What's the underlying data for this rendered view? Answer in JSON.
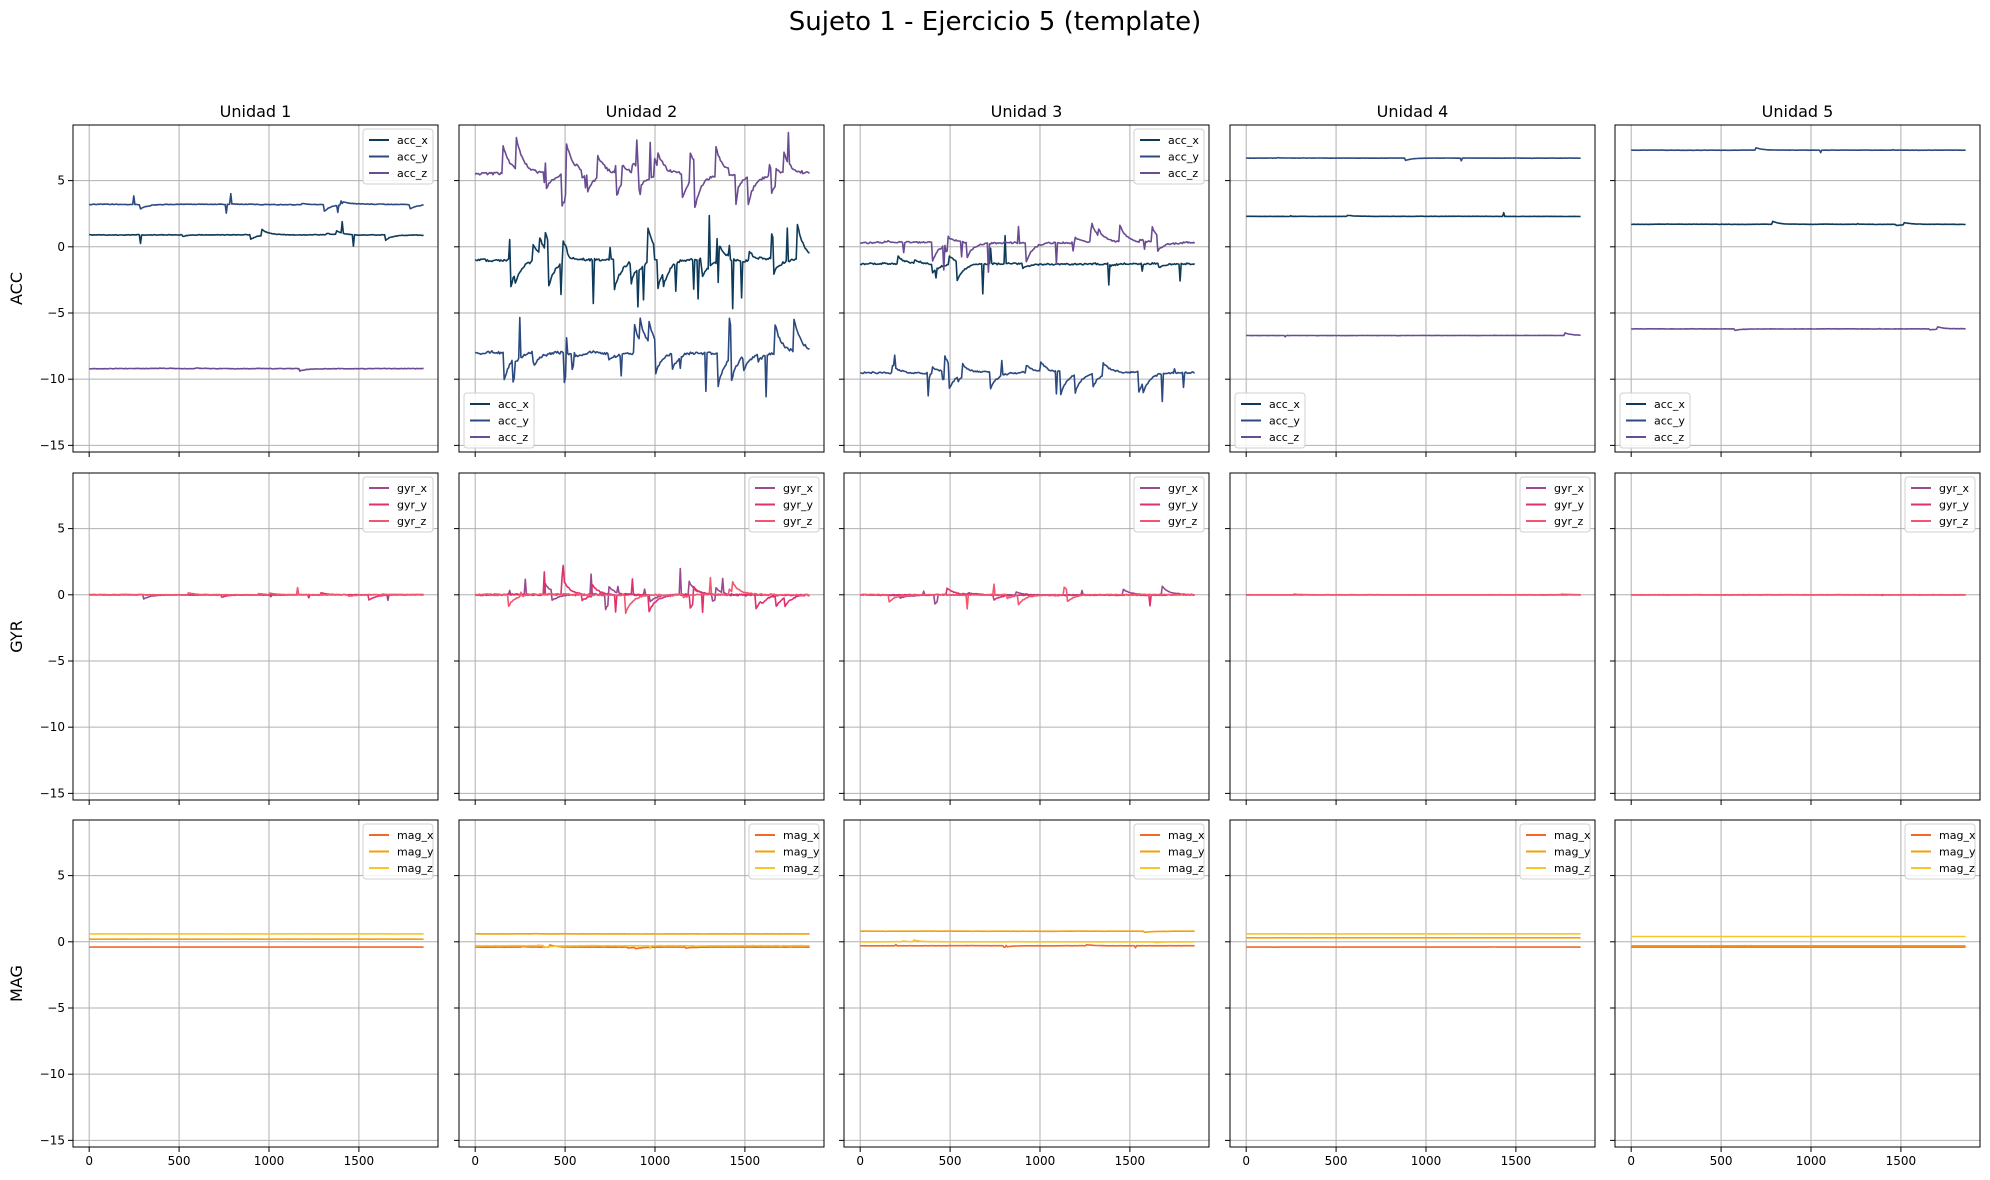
{
  "figure": {
    "title": "Sujeto 1 - Ejercicio 5 (template)",
    "columns": [
      "Unidad 1",
      "Unidad 2",
      "Unidad 3",
      "Unidad 4",
      "Unidad 5"
    ],
    "rows": [
      "ACC",
      "GYR",
      "MAG"
    ]
  },
  "axes": {
    "xlim": [
      -90,
      1940
    ],
    "ylim": [
      -15.5,
      9.2
    ],
    "xticks": [
      0,
      500,
      1000,
      1500
    ],
    "yticks": [
      5,
      0,
      -5,
      -10,
      -15
    ],
    "grid": true,
    "sharex": true,
    "sharey": true
  },
  "colors": {
    "acc_x": "#0e3b5a",
    "acc_y": "#2c4a80",
    "acc_z": "#6a4c93",
    "gyr_x": "#9b4a8f",
    "gyr_y": "#e0306a",
    "gyr_z": "#f2576f",
    "mag_x": "#ee6a2a",
    "mag_y": "#f5a00a",
    "mag_z": "#f7c52c"
  },
  "chart_data": [
    {
      "type": "line",
      "row": "ACC",
      "column": "Unidad 1",
      "legend_loc": "upper right",
      "x_range": [
        0,
        1860
      ],
      "series": [
        {
          "name": "acc_x",
          "mean": 0.9
        },
        {
          "name": "acc_y",
          "mean": 3.2
        },
        {
          "name": "acc_z",
          "mean": -9.2
        }
      ]
    },
    {
      "type": "line",
      "row": "ACC",
      "column": "Unidad 2",
      "legend_loc": "lower left",
      "x_range": [
        0,
        1860
      ],
      "series": [
        {
          "name": "acc_x",
          "mean": -1.0
        },
        {
          "name": "acc_y",
          "mean": -8.0
        },
        {
          "name": "acc_z",
          "mean": 5.5
        }
      ]
    },
    {
      "type": "line",
      "row": "ACC",
      "column": "Unidad 3",
      "legend_loc": "upper right",
      "x_range": [
        0,
        1860
      ],
      "series": [
        {
          "name": "acc_x",
          "mean": -1.3
        },
        {
          "name": "acc_y",
          "mean": -9.5
        },
        {
          "name": "acc_z",
          "mean": 0.3
        }
      ]
    },
    {
      "type": "line",
      "row": "ACC",
      "column": "Unidad 4",
      "legend_loc": "lower left",
      "x_range": [
        0,
        1860
      ],
      "series": [
        {
          "name": "acc_x",
          "mean": 2.3
        },
        {
          "name": "acc_y",
          "mean": 6.7
        },
        {
          "name": "acc_z",
          "mean": -6.7
        }
      ]
    },
    {
      "type": "line",
      "row": "ACC",
      "column": "Unidad 5",
      "legend_loc": "lower left",
      "x_range": [
        0,
        1860
      ],
      "series": [
        {
          "name": "acc_x",
          "mean": 1.7
        },
        {
          "name": "acc_y",
          "mean": 7.3
        },
        {
          "name": "acc_z",
          "mean": -6.2
        }
      ]
    },
    {
      "type": "line",
      "row": "GYR",
      "column": "Unidad 1",
      "legend_loc": "upper right",
      "x_range": [
        0,
        1860
      ],
      "series": [
        {
          "name": "gyr_x",
          "mean": 0.0
        },
        {
          "name": "gyr_y",
          "mean": 0.0
        },
        {
          "name": "gyr_z",
          "mean": 0.0
        }
      ]
    },
    {
      "type": "line",
      "row": "GYR",
      "column": "Unidad 2",
      "legend_loc": "upper right",
      "x_range": [
        0,
        1860
      ],
      "series": [
        {
          "name": "gyr_x",
          "mean": 0.0
        },
        {
          "name": "gyr_y",
          "mean": 0.0
        },
        {
          "name": "gyr_z",
          "mean": 0.0
        }
      ]
    },
    {
      "type": "line",
      "row": "GYR",
      "column": "Unidad 3",
      "legend_loc": "upper right",
      "x_range": [
        0,
        1860
      ],
      "series": [
        {
          "name": "gyr_x",
          "mean": 0.0
        },
        {
          "name": "gyr_y",
          "mean": 0.0
        },
        {
          "name": "gyr_z",
          "mean": 0.0
        }
      ]
    },
    {
      "type": "line",
      "row": "GYR",
      "column": "Unidad 4",
      "legend_loc": "upper right",
      "x_range": [
        0,
        1860
      ],
      "series": [
        {
          "name": "gyr_x",
          "mean": 0.0
        },
        {
          "name": "gyr_y",
          "mean": 0.0
        },
        {
          "name": "gyr_z",
          "mean": 0.0
        }
      ]
    },
    {
      "type": "line",
      "row": "GYR",
      "column": "Unidad 5",
      "legend_loc": "upper right",
      "x_range": [
        0,
        1860
      ],
      "series": [
        {
          "name": "gyr_x",
          "mean": 0.0
        },
        {
          "name": "gyr_y",
          "mean": 0.0
        },
        {
          "name": "gyr_z",
          "mean": 0.0
        }
      ]
    },
    {
      "type": "line",
      "row": "MAG",
      "column": "Unidad 1",
      "legend_loc": "upper right",
      "x_range": [
        0,
        1860
      ],
      "series": [
        {
          "name": "mag_x",
          "mean": -0.4
        },
        {
          "name": "mag_y",
          "mean": 0.2
        },
        {
          "name": "mag_z",
          "mean": 0.6
        }
      ]
    },
    {
      "type": "line",
      "row": "MAG",
      "column": "Unidad 2",
      "legend_loc": "upper right",
      "x_range": [
        0,
        1860
      ],
      "series": [
        {
          "name": "mag_x",
          "mean": -0.4
        },
        {
          "name": "mag_y",
          "mean": 0.6
        },
        {
          "name": "mag_z",
          "mean": -0.3
        }
      ]
    },
    {
      "type": "line",
      "row": "MAG",
      "column": "Unidad 3",
      "legend_loc": "upper right",
      "x_range": [
        0,
        1860
      ],
      "series": [
        {
          "name": "mag_x",
          "mean": -0.3
        },
        {
          "name": "mag_y",
          "mean": 0.8
        },
        {
          "name": "mag_z",
          "mean": 0.0
        }
      ]
    },
    {
      "type": "line",
      "row": "MAG",
      "column": "Unidad 4",
      "legend_loc": "upper right",
      "x_range": [
        0,
        1860
      ],
      "series": [
        {
          "name": "mag_x",
          "mean": -0.4
        },
        {
          "name": "mag_y",
          "mean": 0.3
        },
        {
          "name": "mag_z",
          "mean": 0.6
        }
      ]
    },
    {
      "type": "line",
      "row": "MAG",
      "column": "Unidad 5",
      "legend_loc": "upper right",
      "x_range": [
        0,
        1860
      ],
      "series": [
        {
          "name": "mag_x",
          "mean": -0.4
        },
        {
          "name": "mag_y",
          "mean": -0.3
        },
        {
          "name": "mag_z",
          "mean": 0.4
        }
      ]
    }
  ]
}
